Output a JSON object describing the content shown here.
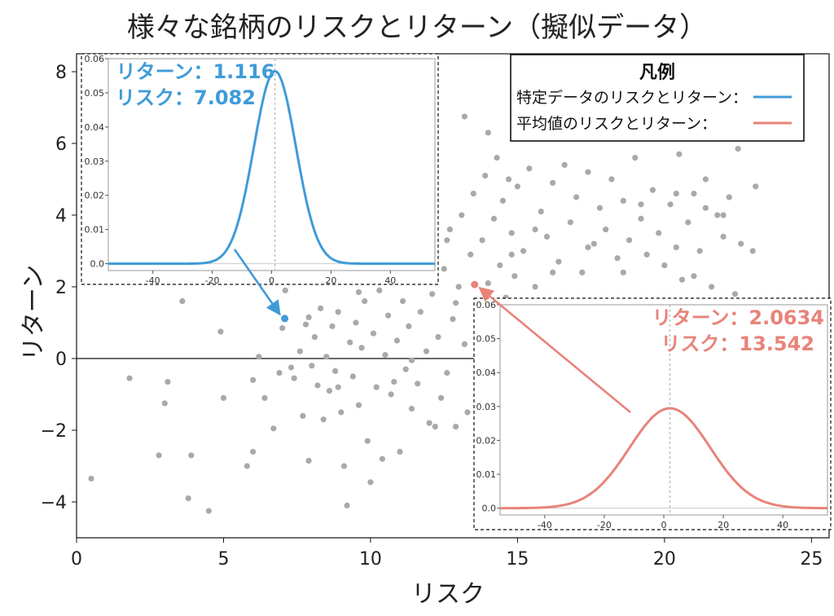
{
  "chart_data": [
    {
      "type": "scatter",
      "title": "様々な銘柄のリスクとリターン（擬似データ）",
      "xlabel": "リスク",
      "ylabel": "リターン",
      "xlim": [
        0,
        25.6
      ],
      "ylim": [
        -5,
        8.5
      ],
      "xticks": [
        0,
        5,
        10,
        15,
        20,
        25
      ],
      "yticks": [
        -4,
        -2,
        0,
        2,
        4,
        6,
        8
      ],
      "ytick_labels": [
        "−4",
        "−2",
        "0",
        "2",
        "4",
        "6",
        "8"
      ],
      "grid": false,
      "zero_line": true,
      "point_color": "#a9a9a9",
      "points": [
        [
          0.5,
          -3.35
        ],
        [
          1.8,
          -0.55
        ],
        [
          2.8,
          -2.7
        ],
        [
          3.0,
          -1.25
        ],
        [
          3.1,
          -0.65
        ],
        [
          3.8,
          -3.9
        ],
        [
          3.9,
          -2.7
        ],
        [
          3.6,
          1.6
        ],
        [
          4.5,
          -4.25
        ],
        [
          4.9,
          0.75
        ],
        [
          5.0,
          -1.1
        ],
        [
          5.8,
          -3.0
        ],
        [
          6.0,
          -2.6
        ],
        [
          6.0,
          -0.6
        ],
        [
          6.2,
          0.05
        ],
        [
          6.4,
          -1.1
        ],
        [
          6.7,
          -1.95
        ],
        [
          6.9,
          -0.4
        ],
        [
          7.0,
          0.85
        ],
        [
          7.1,
          1.9
        ],
        [
          7.3,
          -0.25
        ],
        [
          7.4,
          -0.55
        ],
        [
          7.6,
          0.2
        ],
        [
          7.7,
          -1.6
        ],
        [
          7.8,
          0.95
        ],
        [
          7.9,
          -2.85
        ],
        [
          8.0,
          -0.2
        ],
        [
          8.1,
          0.6
        ],
        [
          8.2,
          -0.75
        ],
        [
          8.3,
          1.4
        ],
        [
          8.4,
          -1.7
        ],
        [
          8.5,
          0.05
        ],
        [
          8.6,
          -0.9
        ],
        [
          8.7,
          0.9
        ],
        [
          8.8,
          -0.35
        ],
        [
          8.9,
          1.3
        ],
        [
          9.0,
          -1.5
        ],
        [
          9.1,
          -3.0
        ],
        [
          9.2,
          -4.1
        ],
        [
          9.3,
          0.45
        ],
        [
          9.4,
          -0.5
        ],
        [
          9.5,
          1.0
        ],
        [
          9.6,
          -1.3
        ],
        [
          9.7,
          0.3
        ],
        [
          9.8,
          1.6
        ],
        [
          9.9,
          -2.3
        ],
        [
          10.0,
          -3.45
        ],
        [
          10.1,
          0.7
        ],
        [
          10.2,
          -0.8
        ],
        [
          10.3,
          1.9
        ],
        [
          10.4,
          -2.8
        ],
        [
          10.5,
          0.1
        ],
        [
          10.6,
          1.2
        ],
        [
          10.7,
          -1.0
        ],
        [
          10.8,
          2.4
        ],
        [
          10.9,
          0.5
        ],
        [
          11.0,
          -2.6
        ],
        [
          11.1,
          1.6
        ],
        [
          11.2,
          -0.3
        ],
        [
          11.3,
          0.9
        ],
        [
          11.4,
          -1.4
        ],
        [
          11.5,
          2.2
        ],
        [
          11.6,
          -0.7
        ],
        [
          11.7,
          1.3
        ],
        [
          11.8,
          2.8
        ],
        [
          11.9,
          0.2
        ],
        [
          12.0,
          -1.8
        ],
        [
          12.1,
          1.8
        ],
        [
          12.2,
          3.1
        ],
        [
          12.3,
          0.6
        ],
        [
          12.4,
          -1.1
        ],
        [
          12.5,
          2.5
        ],
        [
          12.6,
          -0.4
        ],
        [
          12.7,
          3.6
        ],
        [
          12.8,
          1.1
        ],
        [
          12.9,
          -1.9
        ],
        [
          13.0,
          2.0
        ],
        [
          13.1,
          4.0
        ],
        [
          13.2,
          0.4
        ],
        [
          13.3,
          -1.5
        ],
        [
          13.4,
          2.9
        ],
        [
          13.5,
          4.6
        ],
        [
          13.6,
          1.5
        ],
        [
          13.7,
          -0.9
        ],
        [
          13.8,
          3.3
        ],
        [
          13.9,
          5.1
        ],
        [
          14.0,
          2.1
        ],
        [
          14.1,
          0.8
        ],
        [
          14.2,
          3.9
        ],
        [
          14.3,
          5.6
        ],
        [
          14.4,
          2.6
        ],
        [
          14.5,
          4.4
        ],
        [
          14.6,
          1.7
        ],
        [
          14.7,
          5.0
        ],
        [
          14.8,
          3.5
        ],
        [
          14.9,
          2.3
        ],
        [
          15.0,
          4.8
        ],
        [
          15.2,
          3.0
        ],
        [
          15.4,
          5.3
        ],
        [
          15.6,
          2.0
        ],
        [
          15.8,
          4.1
        ],
        [
          16.0,
          3.4
        ],
        [
          16.2,
          4.9
        ],
        [
          16.4,
          2.7
        ],
        [
          16.6,
          5.4
        ],
        [
          16.8,
          3.8
        ],
        [
          17.0,
          4.5
        ],
        [
          17.2,
          2.4
        ],
        [
          17.4,
          5.2
        ],
        [
          17.6,
          3.2
        ],
        [
          17.8,
          4.2
        ],
        [
          18.0,
          3.6
        ],
        [
          18.2,
          5.0
        ],
        [
          18.4,
          2.8
        ],
        [
          18.6,
          4.4
        ],
        [
          18.8,
          3.3
        ],
        [
          19.0,
          5.6
        ],
        [
          19.2,
          3.9
        ],
        [
          19.4,
          2.9
        ],
        [
          19.6,
          4.7
        ],
        [
          19.8,
          3.5
        ],
        [
          20.0,
          2.6
        ],
        [
          20.2,
          4.3
        ],
        [
          20.4,
          3.1
        ],
        [
          20.6,
          2.2
        ],
        [
          20.8,
          3.8
        ],
        [
          21.0,
          4.6
        ],
        [
          21.2,
          3.0
        ],
        [
          21.4,
          5.0
        ],
        [
          21.6,
          2.0
        ],
        [
          21.8,
          4.0
        ],
        [
          22.0,
          3.4
        ],
        [
          22.2,
          4.5
        ],
        [
          22.4,
          1.8
        ],
        [
          22.6,
          3.2
        ],
        [
          23.0,
          3.0
        ],
        [
          22.5,
          5.85
        ],
        [
          20.5,
          5.7
        ],
        [
          13.2,
          6.75
        ],
        [
          14.0,
          6.3
        ],
        [
          12.9,
          1.55
        ],
        [
          13.6,
          -0.4
        ],
        [
          12.2,
          -1.9
        ],
        [
          11.4,
          -0.05
        ],
        [
          10.8,
          -0.65
        ],
        [
          9.6,
          1.85
        ],
        [
          8.9,
          -0.8
        ],
        [
          7.9,
          1.15
        ],
        [
          12.6,
          3.3
        ],
        [
          14.8,
          2.9
        ],
        [
          15.6,
          3.6
        ],
        [
          16.2,
          2.4
        ],
        [
          17.4,
          3.1
        ],
        [
          18.6,
          2.4
        ],
        [
          19.2,
          4.3
        ],
        [
          20.4,
          4.6
        ],
        [
          21.4,
          4.2
        ],
        [
          22.0,
          4.0
        ],
        [
          23.1,
          4.8
        ],
        [
          21.0,
          2.3
        ]
      ],
      "highlights": [
        {
          "x": 7.082,
          "y": 1.116,
          "color": "#3f9bd8"
        },
        {
          "x": 13.542,
          "y": 2.0634,
          "color": "#e8837a"
        }
      ],
      "legend": {
        "title": "凡例",
        "placement": "top-right",
        "entries": [
          {
            "label": "特定データのリスクとリターン：",
            "color": "#3f9bd8"
          },
          {
            "label": "平均値のリスクとリターン：",
            "color": "#e8837a"
          }
        ]
      }
    },
    {
      "type": "line",
      "inset": "top-left",
      "color": "#3f9bd8",
      "mean": 1.116,
      "sd": 7.082,
      "xlim": [
        -55,
        55
      ],
      "ylim": [
        -0.002,
        0.06
      ],
      "xticks": [
        -40,
        -20,
        0,
        20,
        40
      ],
      "yticks": [
        0.0,
        0.01,
        0.02,
        0.03,
        0.04,
        0.05,
        0.06
      ],
      "ytick_labels": [
        "0.0",
        "0.01",
        "0.02",
        "0.03",
        "0.04",
        "0.05",
        "0.06"
      ],
      "annotation": [
        "リターン：1.116",
        "リスク：7.082"
      ]
    },
    {
      "type": "line",
      "inset": "bottom-right",
      "color": "#e8837a",
      "mean": 2.0634,
      "sd": 13.542,
      "xlim": [
        -55,
        55
      ],
      "ylim": [
        -0.002,
        0.06
      ],
      "xticks": [
        -40,
        -20,
        0,
        20,
        40
      ],
      "yticks": [
        0.0,
        0.01,
        0.02,
        0.03,
        0.04,
        0.05,
        0.06
      ],
      "ytick_labels": [
        "0.0",
        "0.01",
        "0.02",
        "0.03",
        "0.04",
        "0.05",
        "0.06"
      ],
      "annotation": [
        "リターン：2.0634",
        "リスク：13.542"
      ]
    }
  ]
}
